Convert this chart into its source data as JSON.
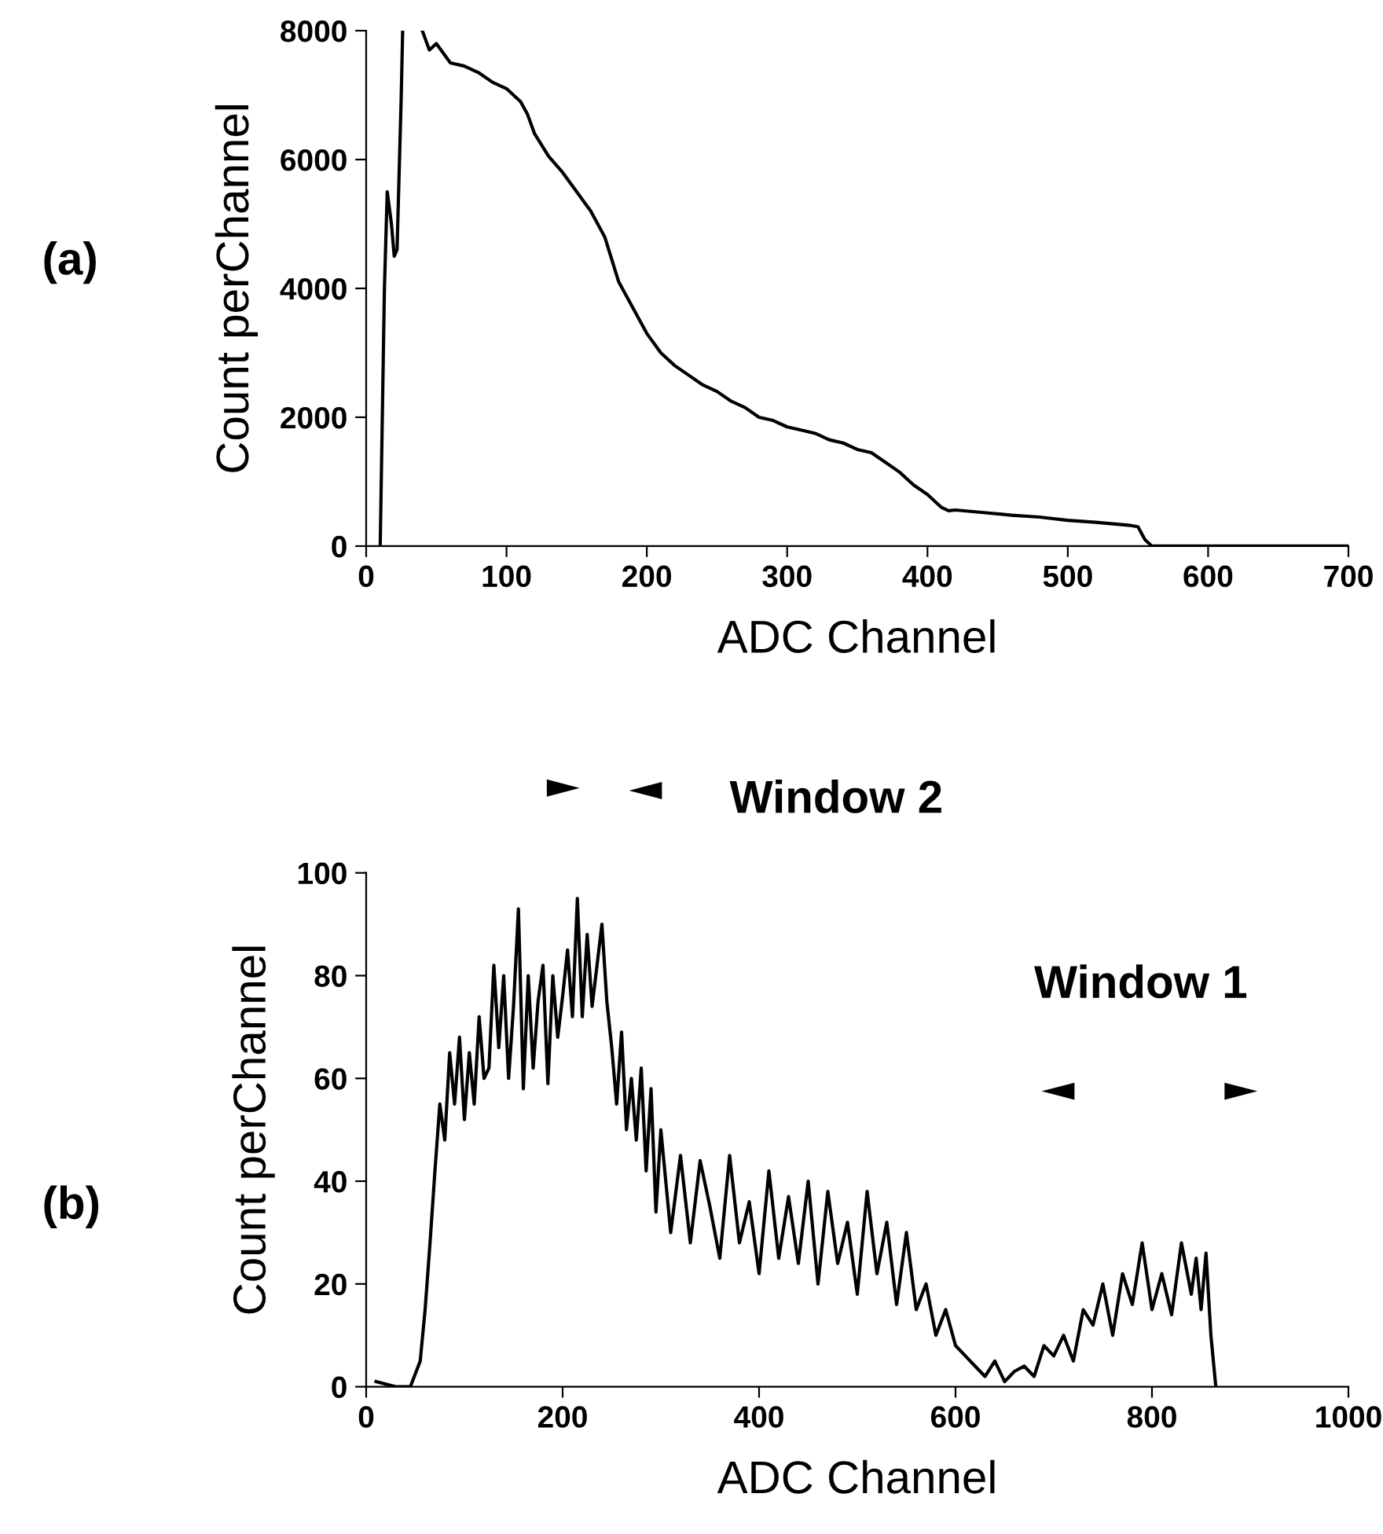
{
  "chart_data": [
    {
      "type": "line",
      "xlabel": "ADC Channel",
      "ylabel": "Count perChannel",
      "annotations": [
        "(a)"
      ],
      "xlim": [
        0,
        700
      ],
      "ylim": [
        0,
        8000
      ],
      "xticks": [
        0,
        100,
        200,
        300,
        400,
        500,
        600,
        700
      ],
      "yticks": [
        0,
        2000,
        4000,
        6000,
        8000
      ],
      "grid": false,
      "legend": false,
      "series": [
        {
          "color": "#000000",
          "x": [
            10,
            13,
            15,
            18,
            20,
            22,
            25,
            26,
            33,
            40,
            45,
            50,
            60,
            70,
            80,
            90,
            100,
            105,
            110,
            115,
            120,
            130,
            140,
            150,
            160,
            170,
            175,
            180,
            190,
            200,
            210,
            220,
            230,
            240,
            250,
            260,
            270,
            280,
            290,
            300,
            310,
            320,
            330,
            340,
            350,
            360,
            370,
            380,
            390,
            400,
            410,
            415,
            420,
            440,
            460,
            480,
            500,
            520,
            545,
            550,
            555,
            560,
            600,
            700
          ],
          "values": [
            0,
            4000,
            5500,
            5000,
            4500,
            4600,
            7000,
            8000,
            null,
            8000,
            7700,
            7800,
            7500,
            7450,
            7350,
            7200,
            7100,
            7000,
            6900,
            6700,
            6400,
            6050,
            5800,
            5500,
            5200,
            4800,
            4450,
            4100,
            3700,
            3300,
            3000,
            2800,
            2650,
            2500,
            2400,
            2250,
            2150,
            2000,
            1950,
            1850,
            1800,
            1750,
            1650,
            1600,
            1500,
            1450,
            1300,
            1150,
            950,
            800,
            600,
            550,
            560,
            520,
            480,
            450,
            400,
            370,
            320,
            300,
            100,
            0,
            0,
            0
          ]
        }
      ]
    },
    {
      "type": "line",
      "xlabel": "ADC Channel",
      "ylabel": "Count perChannel",
      "annotations": [
        "(b)",
        "Window 2",
        "Window 1"
      ],
      "xlim": [
        0,
        1000
      ],
      "ylim": [
        0,
        100
      ],
      "xticks": [
        0,
        200,
        400,
        600,
        800,
        1000
      ],
      "yticks": [
        0,
        20,
        40,
        60,
        80,
        100
      ],
      "grid": false,
      "legend": false,
      "series": [
        {
          "color": "#000000",
          "x": [
            10,
            30,
            45,
            55,
            60,
            65,
            70,
            75,
            80,
            85,
            90,
            95,
            100,
            105,
            110,
            115,
            120,
            125,
            130,
            135,
            140,
            145,
            150,
            155,
            160,
            165,
            170,
            175,
            180,
            185,
            190,
            195,
            200,
            205,
            210,
            215,
            220,
            225,
            230,
            235,
            240,
            245,
            250,
            255,
            260,
            265,
            270,
            275,
            280,
            285,
            290,
            295,
            300,
            310,
            320,
            330,
            340,
            350,
            360,
            370,
            380,
            390,
            400,
            410,
            420,
            430,
            440,
            450,
            460,
            470,
            480,
            490,
            500,
            510,
            520,
            530,
            540,
            550,
            560,
            570,
            580,
            590,
            600,
            610,
            620,
            630,
            640,
            650,
            660,
            670,
            680,
            690,
            700,
            710,
            720,
            730,
            740,
            750,
            760,
            770,
            780,
            790,
            800,
            810,
            820,
            830,
            840,
            845,
            850,
            855,
            860,
            865
          ],
          "values": [
            1,
            0,
            0,
            5,
            15,
            28,
            42,
            55,
            48,
            65,
            55,
            68,
            52,
            65,
            55,
            72,
            60,
            62,
            82,
            66,
            80,
            60,
            74,
            93,
            58,
            80,
            62,
            75,
            82,
            59,
            80,
            68,
            76,
            85,
            72,
            95,
            72,
            88,
            74,
            82,
            90,
            75,
            66,
            55,
            69,
            50,
            60,
            48,
            62,
            42,
            58,
            34,
            50,
            30,
            45,
            28,
            44,
            35,
            25,
            45,
            28,
            36,
            22,
            42,
            25,
            37,
            24,
            40,
            20,
            38,
            24,
            32,
            18,
            38,
            22,
            32,
            16,
            30,
            15,
            20,
            10,
            15,
            8,
            6,
            4,
            2,
            5,
            1,
            3,
            4,
            2,
            8,
            6,
            10,
            5,
            15,
            12,
            20,
            10,
            22,
            16,
            28,
            15,
            22,
            14,
            28,
            18,
            25,
            15,
            26,
            10,
            0
          ]
        }
      ]
    }
  ]
}
